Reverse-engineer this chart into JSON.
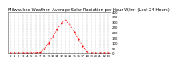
{
  "title": "Milwaukee Weather  Average Solar Radiation per Hour W/m² (Last 24 Hours)",
  "hours": [
    0,
    1,
    2,
    3,
    4,
    5,
    6,
    7,
    8,
    9,
    10,
    11,
    12,
    13,
    14,
    15,
    16,
    17,
    18,
    19,
    20,
    21,
    22,
    23
  ],
  "values": [
    0,
    0,
    0,
    0,
    0,
    0,
    2,
    10,
    45,
    100,
    165,
    230,
    290,
    320,
    275,
    210,
    140,
    70,
    20,
    5,
    0,
    0,
    0,
    0
  ],
  "line_color": "#ff0000",
  "bg_color": "#ffffff",
  "grid_color": "#888888",
  "ylim": [
    0,
    400
  ],
  "ytick_vals": [
    0,
    50,
    100,
    150,
    200,
    250,
    300,
    350,
    400
  ],
  "ytick_labels": [
    "0",
    "50",
    "100",
    "150",
    "200",
    "250",
    "300",
    "350",
    "400"
  ],
  "title_fontsize": 3.8,
  "tick_fontsize": 2.8,
  "line_width": 0.7,
  "marker_size": 1.2
}
